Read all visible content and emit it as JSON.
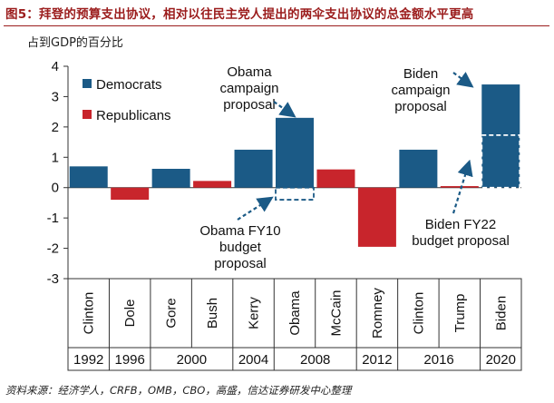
{
  "figure_title": "图5：拜登的预算支出协议，相对以往民主党人提出的两伞支出协议的总金额水平更高",
  "unit_label": "占到GDP的百分比",
  "source_note": "资料来源：经济学人，CRFB，OMB，CBO，高盛，信达证券研发中心整理",
  "colors": {
    "democrat": "#1b5a86",
    "republican": "#c8252c",
    "title_red": "#9b1c1c"
  },
  "legend": [
    {
      "label": "Democrats",
      "color": "#1b5a86"
    },
    {
      "label": "Republicans",
      "color": "#c8252c"
    }
  ],
  "annotations": {
    "obama_campaign": [
      "Obama",
      "campaign",
      "proposal"
    ],
    "biden_campaign": [
      "Biden",
      "campaign",
      "proposal"
    ],
    "obama_fy10": [
      "Obama FY10",
      "budget",
      "proposal"
    ],
    "biden_fy22": [
      "Biden FY22",
      "budget proposal"
    ]
  },
  "chart_data": {
    "type": "bar",
    "ylim": [
      -3,
      4
    ],
    "yticks": [
      4,
      3,
      2,
      1,
      0,
      -1,
      -2,
      -3
    ],
    "ylabel": "",
    "grid": false,
    "legend_position": "top-left",
    "categories": [
      "Clinton",
      "Dole",
      "Gore",
      "Bush",
      "Kerry",
      "Obama",
      "McCain",
      "Romney",
      "Clinton",
      "Trump",
      "Biden"
    ],
    "series": [
      {
        "name": "Campaign proposal",
        "values": [
          0.7,
          -0.4,
          0.62,
          0.22,
          1.25,
          2.3,
          0.6,
          -1.95,
          1.25,
          0.05,
          3.4
        ]
      },
      {
        "name": "Budget proposal",
        "values": [
          null,
          null,
          null,
          null,
          null,
          -0.4,
          null,
          null,
          null,
          null,
          1.73
        ]
      }
    ],
    "party": [
      "D",
      "R",
      "D",
      "R",
      "D",
      "D",
      "R",
      "R",
      "D",
      "R",
      "D"
    ],
    "years": [
      {
        "label": "1992",
        "span": 1
      },
      {
        "label": "1996",
        "span": 1
      },
      {
        "label": "2000",
        "span": 2
      },
      {
        "label": "2004",
        "span": 1
      },
      {
        "label": "2008",
        "span": 2
      },
      {
        "label": "2012",
        "span": 1
      },
      {
        "label": "2016",
        "span": 2
      },
      {
        "label": "2020",
        "span": 1
      }
    ]
  }
}
